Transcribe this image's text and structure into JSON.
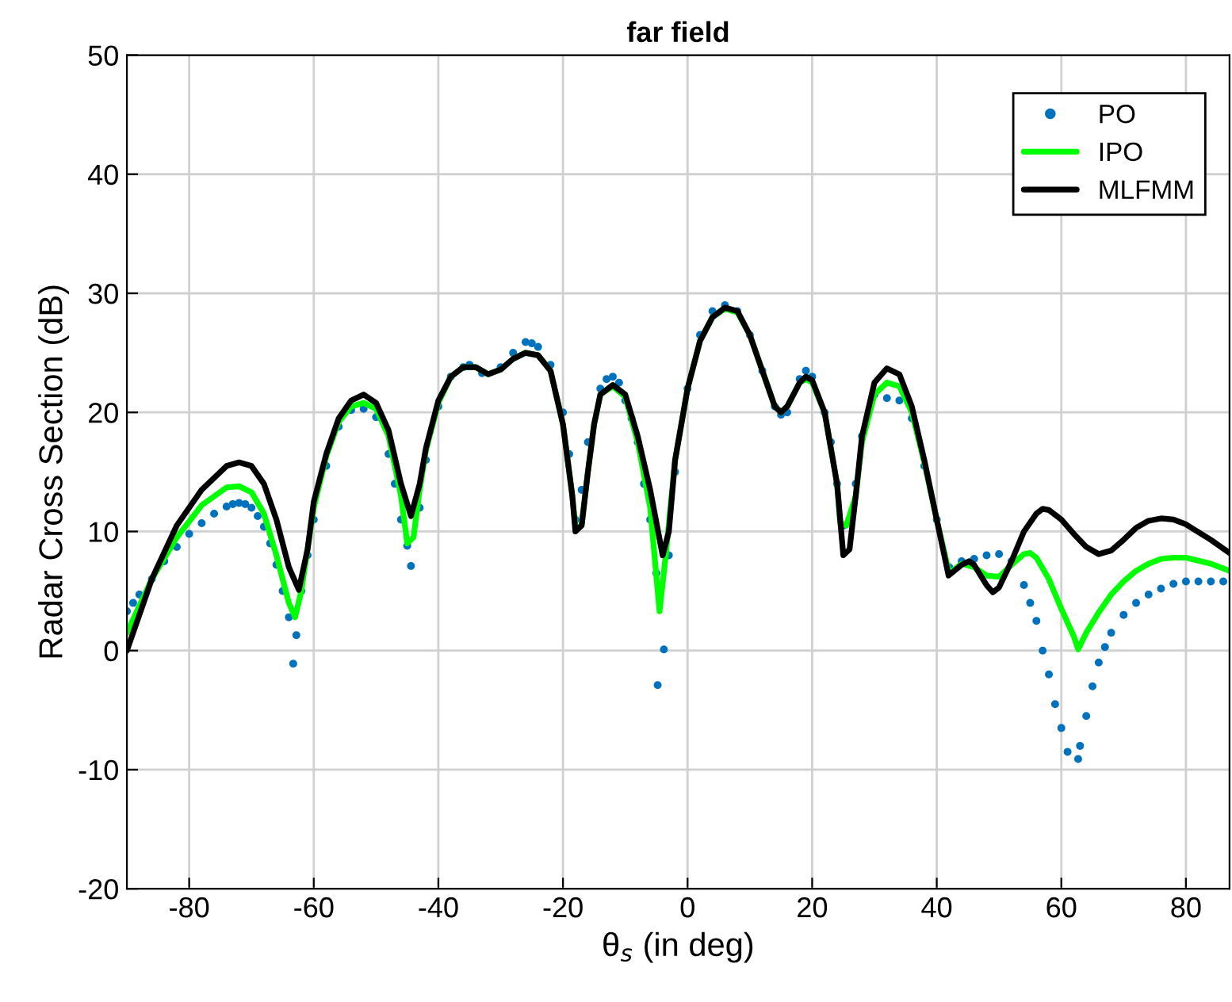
{
  "chart_data": {
    "type": "line",
    "title": "far field",
    "xlabel": "θ$_{s}$ (in deg)",
    "ylabel": "Radar Cross Section (dB)",
    "xlim": [
      -90,
      87
    ],
    "ylim": [
      -20,
      50
    ],
    "xticks": [
      -80,
      -60,
      -40,
      -20,
      0,
      20,
      40,
      60,
      80
    ],
    "yticks": [
      -20,
      -10,
      0,
      10,
      20,
      30,
      40,
      50
    ],
    "grid": true,
    "legend": "top right",
    "series": [
      {
        "name": "PO",
        "type": "scatter",
        "color": "#0072bd",
        "x": [
          -90,
          -89,
          -88,
          -86,
          -84,
          -82,
          -80,
          -78,
          -76,
          -74,
          -73,
          -72,
          -71,
          -70,
          -69,
          -68,
          -67,
          -66,
          -65,
          -64,
          -63.3,
          -62.8,
          -62,
          -61,
          -60,
          -58,
          -56,
          -54,
          -52,
          -50,
          -48,
          -47,
          -46,
          -45,
          -44.4,
          -43,
          -42,
          -40,
          -38,
          -36,
          -35,
          -33,
          -30,
          -28,
          -26,
          -25,
          -24,
          -22,
          -20,
          -19,
          -18,
          -17,
          -16,
          -14,
          -13,
          -12,
          -11,
          -10,
          -9,
          -8,
          -7,
          -6,
          -5,
          -4.8,
          -3.8,
          -3,
          -2,
          0,
          2,
          4,
          6,
          8,
          10,
          12,
          14,
          15,
          16,
          18,
          19,
          20,
          22,
          23,
          24,
          25,
          26,
          27,
          28,
          30,
          32,
          34,
          36,
          38,
          40,
          42,
          44,
          46,
          48,
          50,
          52,
          54,
          55,
          56,
          57,
          58,
          59,
          60,
          61,
          62.7,
          63,
          64,
          65,
          66,
          67,
          68,
          70,
          72,
          74,
          76,
          78,
          80,
          82,
          84,
          86
        ],
        "values": [
          3.3,
          4,
          4.7,
          6,
          7.5,
          8.7,
          9.8,
          10.7,
          11.5,
          12.1,
          12.3,
          12.4,
          12.3,
          12,
          11.3,
          10.4,
          9,
          7.2,
          5,
          2.8,
          -1.1,
          1.3,
          5,
          8,
          11,
          15.5,
          18.8,
          20.2,
          20.3,
          19.6,
          16.5,
          14,
          11,
          8.8,
          7.1,
          12,
          16,
          20.5,
          23,
          23.8,
          24,
          23.3,
          23.8,
          25,
          25.9,
          25.8,
          25.5,
          24,
          20,
          16.5,
          11,
          13.5,
          17.5,
          22,
          22.8,
          23,
          22.5,
          21,
          19.5,
          17.5,
          14,
          11,
          6.5,
          -2.9,
          0.1,
          8,
          15,
          22,
          26.5,
          28.5,
          29,
          28.5,
          26.5,
          23.5,
          20.5,
          19.8,
          20,
          22.8,
          23.5,
          23,
          20,
          17.5,
          14,
          10.5,
          11,
          14,
          18,
          21.5,
          21.2,
          21,
          19.5,
          15.5,
          11,
          7,
          7.5,
          7.7,
          8,
          8.1,
          7.5,
          5.5,
          4,
          2.5,
          0,
          -2,
          -4.5,
          -6.5,
          -8.5,
          -9.1,
          -8,
          -5.5,
          -3,
          -1,
          0.3,
          1.5,
          3,
          4,
          4.7,
          5.2,
          5.6,
          5.8,
          5.8,
          5.8,
          5.8
        ]
      },
      {
        "name": "IPO",
        "color": "#00ff00",
        "x": [
          -90,
          -86,
          -82,
          -78,
          -74,
          -72,
          -70,
          -68,
          -66,
          -64,
          -63,
          -62,
          -60,
          -58,
          -56,
          -54,
          -52,
          -50,
          -48,
          -46,
          -45,
          -44,
          -43,
          -42,
          -40,
          -38,
          -36,
          -34,
          -32,
          -30,
          -28,
          -26,
          -24,
          -22,
          -20,
          -18.5,
          -18,
          -17,
          -16,
          -15,
          -14,
          -12,
          -10,
          -8,
          -6,
          -4.5,
          -3.5,
          -2,
          0,
          2,
          4,
          6,
          8,
          10,
          12,
          14,
          15,
          16,
          18,
          19,
          20,
          22,
          24,
          24.5,
          25.5,
          27,
          28,
          30,
          32,
          34,
          36,
          38,
          40,
          42,
          44,
          46,
          48,
          50,
          52,
          54,
          55,
          56,
          58,
          60,
          62,
          62.7,
          64,
          66,
          68,
          70,
          72,
          74,
          76,
          78,
          80,
          84,
          87
        ],
        "values": [
          1.5,
          6,
          9.5,
          12.2,
          13.7,
          13.8,
          13.3,
          11.5,
          8,
          4,
          2.8,
          5,
          12,
          16.3,
          19.2,
          20.5,
          20.8,
          20.3,
          18,
          13,
          9,
          9.5,
          13.5,
          16.8,
          20.8,
          23,
          23.8,
          23.8,
          23.2,
          23.6,
          24.5,
          25,
          24.8,
          23.5,
          19,
          13,
          10.3,
          10.5,
          15,
          19,
          21.5,
          22.2,
          21.3,
          17.5,
          12,
          3.3,
          8,
          16,
          22,
          26,
          28,
          28.7,
          28.4,
          26.5,
          23.5,
          20.5,
          20,
          20.5,
          22.5,
          22.8,
          22.5,
          20,
          14,
          10.7,
          10.5,
          13,
          17.5,
          21.5,
          22.5,
          22.2,
          20,
          15.8,
          11,
          6.5,
          7.3,
          7,
          6.3,
          6.2,
          7.2,
          8.1,
          8.2,
          7.8,
          6,
          3.5,
          1.2,
          0.1,
          1.5,
          3.2,
          4.7,
          5.8,
          6.7,
          7.3,
          7.7,
          7.8,
          7.8,
          7.3,
          6.7
        ]
      },
      {
        "name": "MLFMM",
        "color": "#000000",
        "x": [
          -90,
          -86,
          -82,
          -78,
          -74,
          -72,
          -70,
          -68,
          -66,
          -64,
          -62.4,
          -61,
          -60,
          -58,
          -56,
          -54,
          -52,
          -50,
          -48,
          -46,
          -44.4,
          -43,
          -42,
          -40,
          -38,
          -36,
          -34,
          -32,
          -30,
          -28,
          -26,
          -24,
          -22,
          -20,
          -18.5,
          -18,
          -17,
          -16,
          -15,
          -14,
          -12,
          -10,
          -8,
          -6,
          -4,
          -3,
          -2,
          0,
          2,
          4,
          6,
          8,
          10,
          12,
          14,
          15,
          16,
          18,
          19,
          20,
          22,
          24,
          25,
          26,
          27,
          28,
          30,
          32,
          34,
          36,
          38,
          40,
          41.9,
          44,
          45.2,
          46,
          48,
          49,
          50,
          52,
          54,
          56,
          57,
          58,
          60,
          62,
          64,
          66,
          68,
          70,
          72,
          74,
          76,
          78,
          80,
          84,
          87
        ],
        "values": [
          0,
          6,
          10.5,
          13.5,
          15.5,
          15.8,
          15.5,
          14,
          11,
          7,
          5.1,
          8.5,
          12.5,
          16.5,
          19.5,
          21,
          21.5,
          20.8,
          18.5,
          14,
          11.3,
          14,
          17,
          21,
          23,
          23.8,
          23.8,
          23.2,
          23.6,
          24.5,
          25,
          24.8,
          23.5,
          19,
          13,
          10,
          10.5,
          15,
          19,
          21.5,
          22.3,
          21.5,
          18,
          13.5,
          8,
          10,
          16,
          22,
          26,
          28,
          28.8,
          28.5,
          26.5,
          23.5,
          20.5,
          20,
          20.5,
          22.5,
          23,
          22.7,
          20,
          14,
          8,
          8.5,
          13,
          18,
          22.5,
          23.7,
          23.2,
          20.5,
          16,
          11,
          6.3,
          7.2,
          7.5,
          7.2,
          5.5,
          4.9,
          5.3,
          7.5,
          10,
          11.5,
          11.9,
          11.8,
          11,
          9.8,
          8.7,
          8.1,
          8.4,
          9.3,
          10.3,
          10.9,
          11.1,
          11,
          10.6,
          9.3,
          8.2
        ]
      }
    ]
  }
}
